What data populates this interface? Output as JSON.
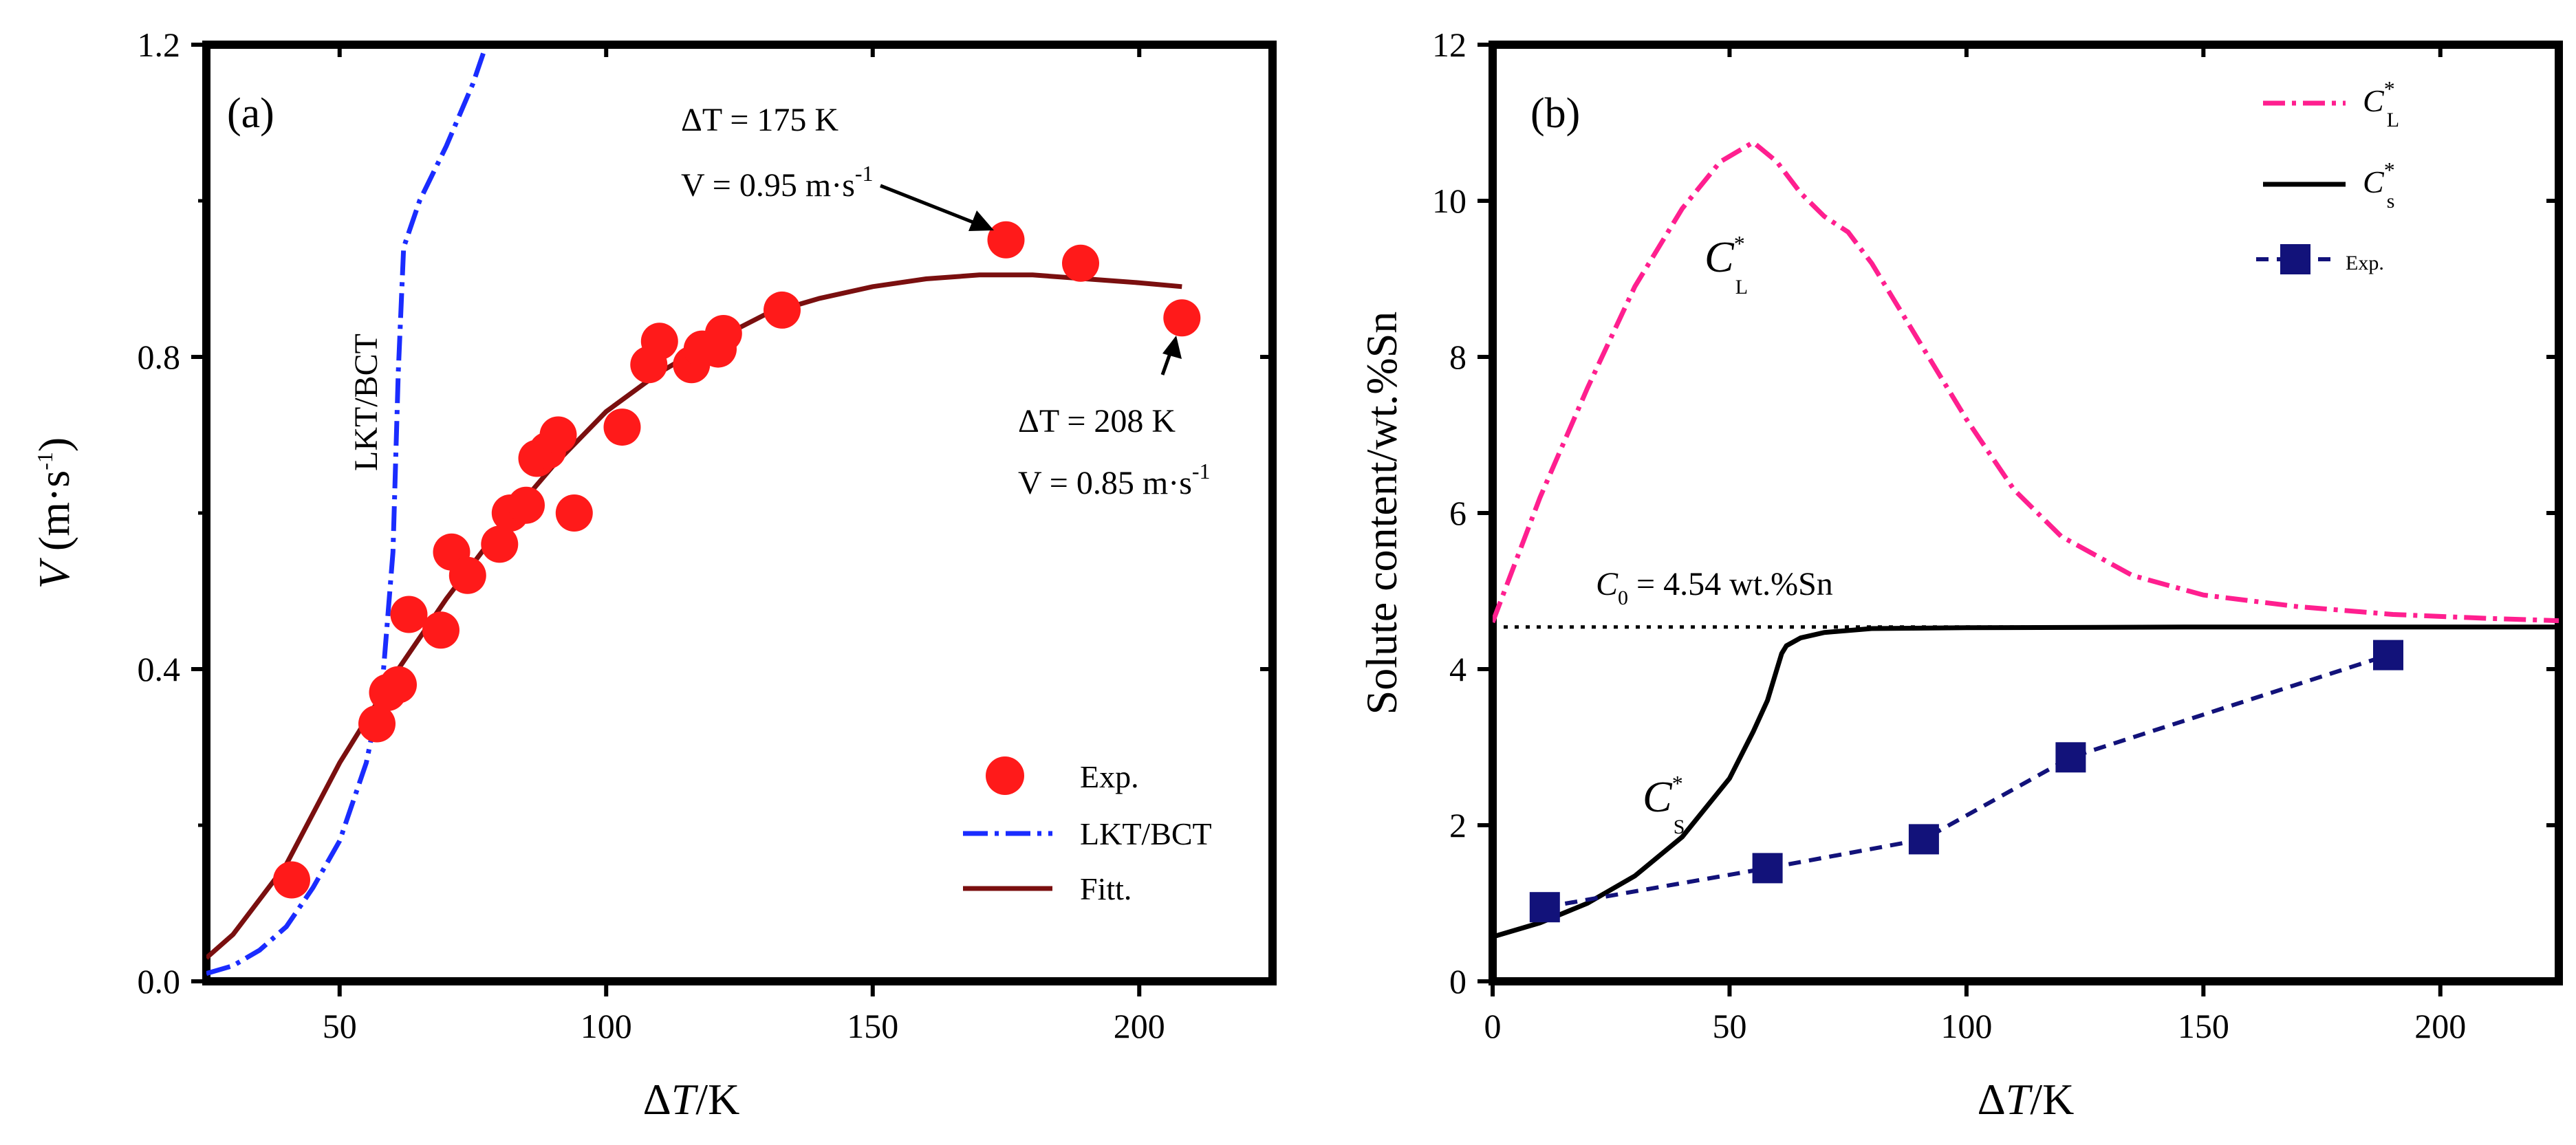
{
  "chart_data": [
    {
      "panel": "(a)",
      "type": "scatter",
      "xlabel": "ΔT/K",
      "ylabel": "V (m·s-1)",
      "xlim": [
        25,
        225
      ],
      "ylim": [
        0,
        1.2
      ],
      "xticks": [
        50,
        100,
        150,
        200
      ],
      "yticks": [
        0.0,
        0.4,
        0.8,
        1.2
      ],
      "ytick_labels": [
        "0.0",
        "0.4",
        "0.8",
        "1.2"
      ],
      "legend_position": "bottom-right",
      "colors": {
        "exp": "#ff1a1a",
        "lkt": "#1a2cff",
        "fit": "#7a0f0f"
      },
      "series": [
        {
          "name": "Exp.",
          "kind": "markers",
          "x": [
            41,
            57,
            59,
            61,
            63,
            69,
            71,
            74,
            80,
            82,
            85,
            87,
            89,
            91,
            94,
            103,
            108,
            110,
            116,
            118,
            121,
            122,
            133,
            175,
            189,
            208
          ],
          "y": [
            0.13,
            0.33,
            0.37,
            0.38,
            0.47,
            0.45,
            0.55,
            0.52,
            0.56,
            0.6,
            0.61,
            0.67,
            0.68,
            0.7,
            0.6,
            0.71,
            0.79,
            0.82,
            0.79,
            0.81,
            0.81,
            0.83,
            0.86,
            0.95,
            0.92,
            0.85
          ]
        },
        {
          "name": "LKT/BCT",
          "kind": "dash-dot",
          "x": [
            25,
            30,
            35,
            40,
            45,
            50,
            55,
            58,
            60,
            61,
            62,
            65,
            70,
            75,
            77
          ],
          "y": [
            0.01,
            0.02,
            0.04,
            0.07,
            0.12,
            0.18,
            0.28,
            0.38,
            0.55,
            0.78,
            0.94,
            1.0,
            1.07,
            1.15,
            1.19
          ]
        },
        {
          "name": "Fitt.",
          "kind": "line",
          "x": [
            25,
            30,
            40,
            50,
            60,
            70,
            80,
            90,
            100,
            110,
            120,
            130,
            140,
            150,
            160,
            170,
            180,
            190,
            200,
            208
          ],
          "y": [
            0.03,
            0.06,
            0.15,
            0.28,
            0.39,
            0.49,
            0.58,
            0.66,
            0.73,
            0.78,
            0.82,
            0.855,
            0.875,
            0.89,
            0.9,
            0.905,
            0.905,
            0.9,
            0.895,
            0.89
          ]
        }
      ],
      "annotations": {
        "vertical_label": "LKT/BCT",
        "a1": {
          "dt": "ΔT = 175 K",
          "v": "V = 0.95 m·s",
          "v_sup": "-1"
        },
        "a2": {
          "dt": "ΔT = 208 K",
          "v": "V = 0.85 m·s",
          "v_sup": "-1"
        }
      }
    },
    {
      "panel": "(b)",
      "type": "line",
      "xlabel": "ΔT/K",
      "ylabel": "Solute content/wt.%Sn",
      "xlim": [
        0,
        225
      ],
      "ylim": [
        0,
        12
      ],
      "xticks": [
        0,
        50,
        100,
        150,
        200
      ],
      "yticks": [
        0,
        2,
        4,
        6,
        8,
        10,
        12
      ],
      "legend_position": "top-right",
      "colors": {
        "cl": "#ff1f8f",
        "cs": "#000000",
        "exp": "#12127a",
        "c0": "#000000"
      },
      "series": [
        {
          "name": "C*L",
          "kind": "dash-dot",
          "x": [
            0,
            10,
            20,
            30,
            40,
            48,
            55,
            60,
            65,
            70,
            75,
            80,
            90,
            100,
            110,
            120,
            135,
            150,
            170,
            190,
            210,
            225
          ],
          "y": [
            4.6,
            6.2,
            7.6,
            8.9,
            9.9,
            10.5,
            10.75,
            10.5,
            10.1,
            9.8,
            9.6,
            9.2,
            8.2,
            7.2,
            6.3,
            5.7,
            5.2,
            4.95,
            4.8,
            4.7,
            4.65,
            4.62
          ]
        },
        {
          "name": "C*s",
          "kind": "line",
          "x": [
            0,
            10,
            20,
            30,
            40,
            50,
            55,
            58,
            60,
            61,
            62,
            65,
            70,
            80,
            100,
            150,
            225
          ],
          "y": [
            0.57,
            0.75,
            1.0,
            1.35,
            1.85,
            2.6,
            3.2,
            3.6,
            4.0,
            4.2,
            4.3,
            4.4,
            4.47,
            4.52,
            4.53,
            4.54,
            4.54
          ]
        },
        {
          "name": "Exp.",
          "kind": "dashed-markers",
          "x": [
            11,
            58,
            91,
            122,
            189
          ],
          "y": [
            0.95,
            1.45,
            1.82,
            2.87,
            4.18
          ]
        }
      ],
      "reference": {
        "y": 4.54,
        "label_main": "C",
        "label_sub": "0",
        "label_rest": " = 4.54 wt.%Sn"
      },
      "annotations": {
        "cl_label": {
          "main": "C",
          "sup": "*",
          "sub": "L"
        },
        "cs_label": {
          "main": "C",
          "sup": "*",
          "sub": "S"
        }
      },
      "legend": [
        {
          "main": "C",
          "sup": "*",
          "sub": "L"
        },
        {
          "main": "C",
          "sup": "*",
          "sub": "s"
        },
        {
          "main": "Exp."
        }
      ]
    }
  ]
}
